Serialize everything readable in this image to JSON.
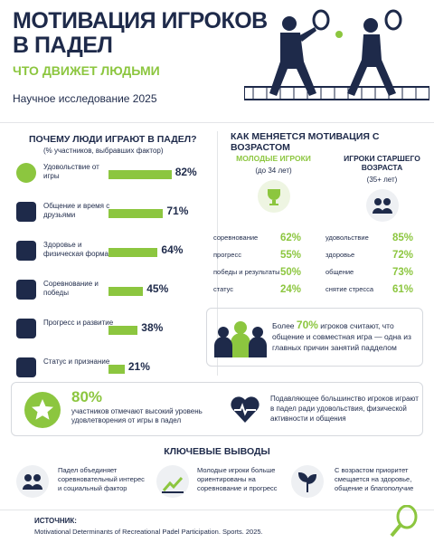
{
  "header": {
    "title": "МОТИВАЦИЯ ИГРОКОВ\nВ ПАДЕЛ",
    "subtitle": "ЧТО ДВИЖЕТ ЛЮДЬМИ",
    "study": "Научное исследование 2025"
  },
  "chart_data": {
    "type": "bar",
    "orientation": "horizontal",
    "title": "ПОЧЕМУ ЛЮДИ ИГРАЮТ В ПАДЕЛ?",
    "subtitle": "(% участников, выбравших фактор)",
    "categories": [
      "Удовольствие от игры",
      "Общение и время с друзьями",
      "Здоровье и физическая форма",
      "Соревнование и победы",
      "Прогресс и развитие",
      "Статус и признание"
    ],
    "values": [
      82,
      71,
      64,
      45,
      38,
      21
    ],
    "value_labels": [
      "82%",
      "71%",
      "64%",
      "45%",
      "38%",
      "21%"
    ],
    "color": "#8cc63f"
  },
  "age": {
    "title": "КАК МЕНЯЕТСЯ МОТИВАЦИЯ С ВОЗРАСТОМ",
    "young": {
      "name": "МОЛОДЫЕ ИГРОКИ",
      "range": "(до 34 лет)",
      "items": [
        [
          "соревнование",
          "62%"
        ],
        [
          "прогресс",
          "55%"
        ],
        [
          "победы и результаты",
          "50%"
        ],
        [
          "статус",
          "24%"
        ]
      ]
    },
    "old": {
      "name": "ИГРОКИ СТАРШЕГО ВОЗРАСТА",
      "range": "(35+ лет)",
      "items": [
        [
          "удовольствие",
          "85%"
        ],
        [
          "здоровье",
          "72%"
        ],
        [
          "общение",
          "73%"
        ],
        [
          "снятие стресса",
          "61%"
        ]
      ]
    },
    "note": {
      "before": "Более ",
      "highlight": "70%",
      "after": " игроков считают, что общение и совместная игра — одна из главных причин занятий падделом"
    }
  },
  "highlights": {
    "stat": "80%",
    "stat_text": "участников отмечают высокий уровень удовлетворения от игры в падел",
    "health": "Подавляющее большинство игроков играют в падел ради удовольствия, физической активности и общения"
  },
  "conclusions": {
    "title": "КЛЮЧЕВЫЕ ВЫВОДЫ",
    "items": [
      "Падел объединяет соревновательный интерес и социальный фактор",
      "Молодые игроки больше ориентированы на соревнование и прогресс",
      "С возрастом приоритет смещается на здоровье, общение и благополучие"
    ]
  },
  "source": {
    "label": "ИСТОЧНИК:",
    "text": "Motivational Determinants of Recreational Padel Participation. Sports. 2025."
  }
}
